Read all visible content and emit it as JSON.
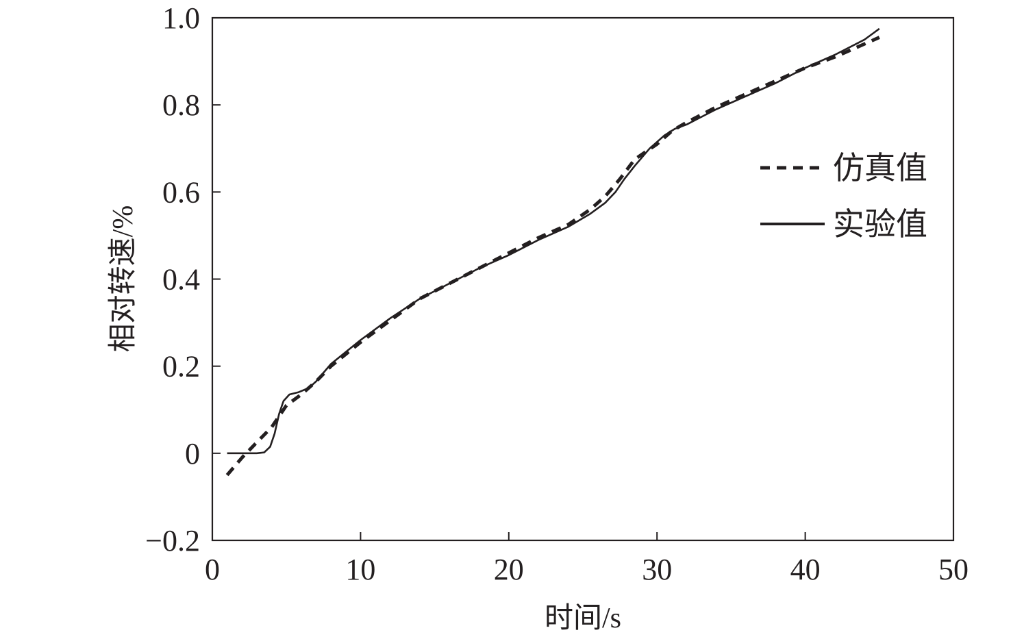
{
  "chart_data": {
    "type": "line",
    "title": "",
    "xlabel": "时间/s",
    "ylabel": "相对转速/%",
    "xlim": [
      0,
      50
    ],
    "ylim": [
      -0.2,
      1.0
    ],
    "xticks": [
      0,
      10,
      20,
      30,
      40,
      50
    ],
    "xtick_labels": [
      "0",
      "10",
      "20",
      "30",
      "40",
      "50"
    ],
    "yticks": [
      -0.2,
      0,
      0.2,
      0.4,
      0.6,
      0.8,
      1.0
    ],
    "ytick_labels": [
      "−0.2",
      "0",
      "0.2",
      "0.4",
      "0.6",
      "0.8",
      "1.0"
    ],
    "grid": false,
    "legend_position": "right",
    "series": [
      {
        "name": "仿真值",
        "style": "dashed",
        "color": "#231f20",
        "x": [
          1.0,
          2.0,
          3.0,
          4.0,
          5.0,
          6.0,
          7.0,
          8.0,
          10.0,
          12.0,
          14.0,
          16.0,
          18.0,
          20.0,
          22.0,
          24.0,
          25.5,
          26.5,
          27.5,
          28.5,
          30.0,
          31.0,
          32.0,
          34.0,
          36.0,
          38.0,
          40.0,
          42.0,
          44.0,
          45.0
        ],
        "y": [
          -0.05,
          -0.01,
          0.025,
          0.06,
          0.11,
          0.135,
          0.165,
          0.2,
          0.255,
          0.305,
          0.355,
          0.39,
          0.425,
          0.46,
          0.495,
          0.525,
          0.56,
          0.59,
          0.63,
          0.675,
          0.71,
          0.74,
          0.76,
          0.795,
          0.825,
          0.855,
          0.885,
          0.91,
          0.94,
          0.955
        ]
      },
      {
        "name": "实验值",
        "style": "solid",
        "color": "#231f20",
        "x": [
          1.0,
          2.0,
          3.0,
          3.5,
          3.9,
          4.2,
          4.5,
          4.8,
          5.2,
          5.8,
          6.5,
          7.0,
          8.0,
          10.0,
          12.0,
          14.0,
          16.0,
          18.0,
          20.0,
          22.0,
          24.0,
          25.5,
          26.5,
          27.2,
          27.8,
          28.5,
          29.5,
          30.5,
          31.2,
          32.0,
          34.0,
          36.0,
          38.0,
          40.0,
          42.0,
          44.0,
          45.0
        ],
        "y": [
          0.0,
          0.0,
          0.0,
          0.002,
          0.015,
          0.045,
          0.09,
          0.12,
          0.135,
          0.14,
          0.15,
          0.165,
          0.205,
          0.26,
          0.31,
          0.355,
          0.39,
          0.425,
          0.455,
          0.49,
          0.52,
          0.55,
          0.575,
          0.6,
          0.63,
          0.66,
          0.7,
          0.73,
          0.745,
          0.755,
          0.79,
          0.82,
          0.85,
          0.885,
          0.915,
          0.95,
          0.975
        ]
      }
    ]
  }
}
